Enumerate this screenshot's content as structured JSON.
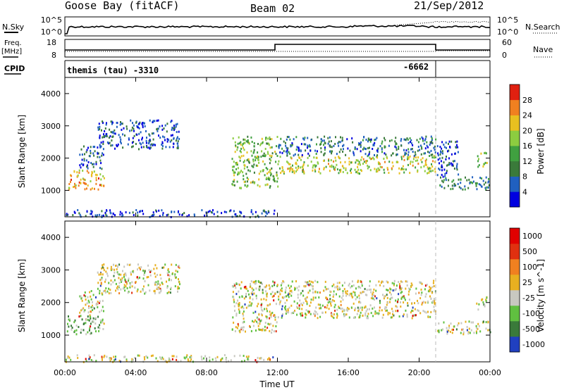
{
  "header": {
    "station": "Goose Bay (fitACF)",
    "beam": "Beam 02",
    "date": "21/Sep/2012"
  },
  "left_labels": {
    "nsky": "N.Sky",
    "freq_top": "Freq.",
    "freq_unit": "[MHz]",
    "cpid": "CPID"
  },
  "right_labels": {
    "nsearch": "N.Search",
    "nave": "Nave"
  },
  "noise_axis": {
    "left_ticks": [
      "10^5",
      "10^0"
    ],
    "right_ticks": [
      "10^5",
      "10^0"
    ]
  },
  "freq_axis": {
    "left_ticks": [
      "18",
      "8"
    ],
    "right_ticks": [
      "60",
      "0"
    ]
  },
  "cpid_labels": {
    "first": "themis (tau) -3310",
    "second": "-6662"
  },
  "chart_data": [
    {
      "type": "heatmap",
      "name": "power",
      "ylabel": "Slant Range [km]",
      "ylim": [
        180,
        4500
      ],
      "yticks": [
        1000,
        2000,
        3000,
        4000
      ],
      "xlim": [
        0,
        24
      ],
      "xticks": [
        "00:00",
        "04:00",
        "08:00",
        "12:00",
        "16:00",
        "20:00",
        "00:00"
      ],
      "colorbar_label": "Power [dB]",
      "colorbar_ticks": [
        "28",
        "24",
        "20",
        "16",
        "12",
        "8",
        "4"
      ],
      "colors": [
        "#0000e0",
        "#2060c0",
        "#3a7a3a",
        "#40a040",
        "#8ccc40",
        "#e8c020",
        "#f08020",
        "#e02010"
      ],
      "regions": [
        {
          "t0": 0.1,
          "t1": 2.2,
          "r0": 1050,
          "r1": 1650,
          "level": 0.75
        },
        {
          "t0": 0.8,
          "t1": 2.2,
          "r0": 1700,
          "r1": 2400,
          "level": 0.2
        },
        {
          "t0": 1.8,
          "t1": 6.5,
          "r0": 2300,
          "r1": 3200,
          "level": 0.18
        },
        {
          "t0": 9.4,
          "t1": 12.0,
          "r0": 1100,
          "r1": 2700,
          "level": 0.5
        },
        {
          "t0": 12.0,
          "t1": 20.9,
          "r0": 1550,
          "r1": 2100,
          "level": 0.6
        },
        {
          "t0": 12.0,
          "t1": 20.9,
          "r0": 2100,
          "r1": 2700,
          "level": 0.25
        },
        {
          "t0": 21.0,
          "t1": 24.0,
          "r0": 1050,
          "r1": 1450,
          "level": 0.3
        },
        {
          "t0": 21.0,
          "t1": 22.2,
          "r0": 1450,
          "r1": 2600,
          "level": 0.2
        },
        {
          "t0": 23.2,
          "t1": 23.8,
          "r0": 1750,
          "r1": 2200,
          "level": 0.55
        },
        {
          "t0": 0.0,
          "t1": 11.8,
          "r0": 200,
          "r1": 420,
          "level": 0.15
        }
      ]
    },
    {
      "type": "heatmap",
      "name": "velocity",
      "ylabel": "Slant Range [km]",
      "ylim": [
        180,
        4500
      ],
      "yticks": [
        1000,
        2000,
        3000,
        4000
      ],
      "xlim": [
        0,
        24
      ],
      "xticks": [
        "00:00",
        "04:00",
        "08:00",
        "12:00",
        "16:00",
        "20:00",
        "00:00"
      ],
      "xlabel": "Time UT",
      "colorbar_label": "Velocity [m s^-1]",
      "colorbar_ticks": [
        "1000",
        "500",
        "100",
        "25",
        "-25",
        "-100",
        "-500",
        "-1000"
      ],
      "colors": [
        "#2040c0",
        "#3a7a3a",
        "#60c040",
        "#c8c8c0",
        "#e8b020",
        "#f08020",
        "#e03010",
        "#e00000"
      ],
      "regions": [
        {
          "t0": 0.1,
          "t1": 2.2,
          "r0": 1050,
          "r1": 1650,
          "level": 0.3
        },
        {
          "t0": 0.8,
          "t1": 2.2,
          "r0": 1700,
          "r1": 2400,
          "level": 0.45
        },
        {
          "t0": 1.8,
          "t1": 6.5,
          "r0": 2300,
          "r1": 3200,
          "level": 0.45
        },
        {
          "t0": 9.4,
          "t1": 12.0,
          "r0": 1100,
          "r1": 2700,
          "level": 0.45
        },
        {
          "t0": 12.0,
          "t1": 20.9,
          "r0": 1550,
          "r1": 2700,
          "level": 0.45
        },
        {
          "t0": 21.0,
          "t1": 24.0,
          "r0": 1050,
          "r1": 1450,
          "level": 0.45
        },
        {
          "t0": 23.2,
          "t1": 23.8,
          "r0": 1750,
          "r1": 2200,
          "level": 0.4
        },
        {
          "t0": 0.0,
          "t1": 11.8,
          "r0": 200,
          "r1": 420,
          "level": 0.45
        }
      ]
    }
  ]
}
